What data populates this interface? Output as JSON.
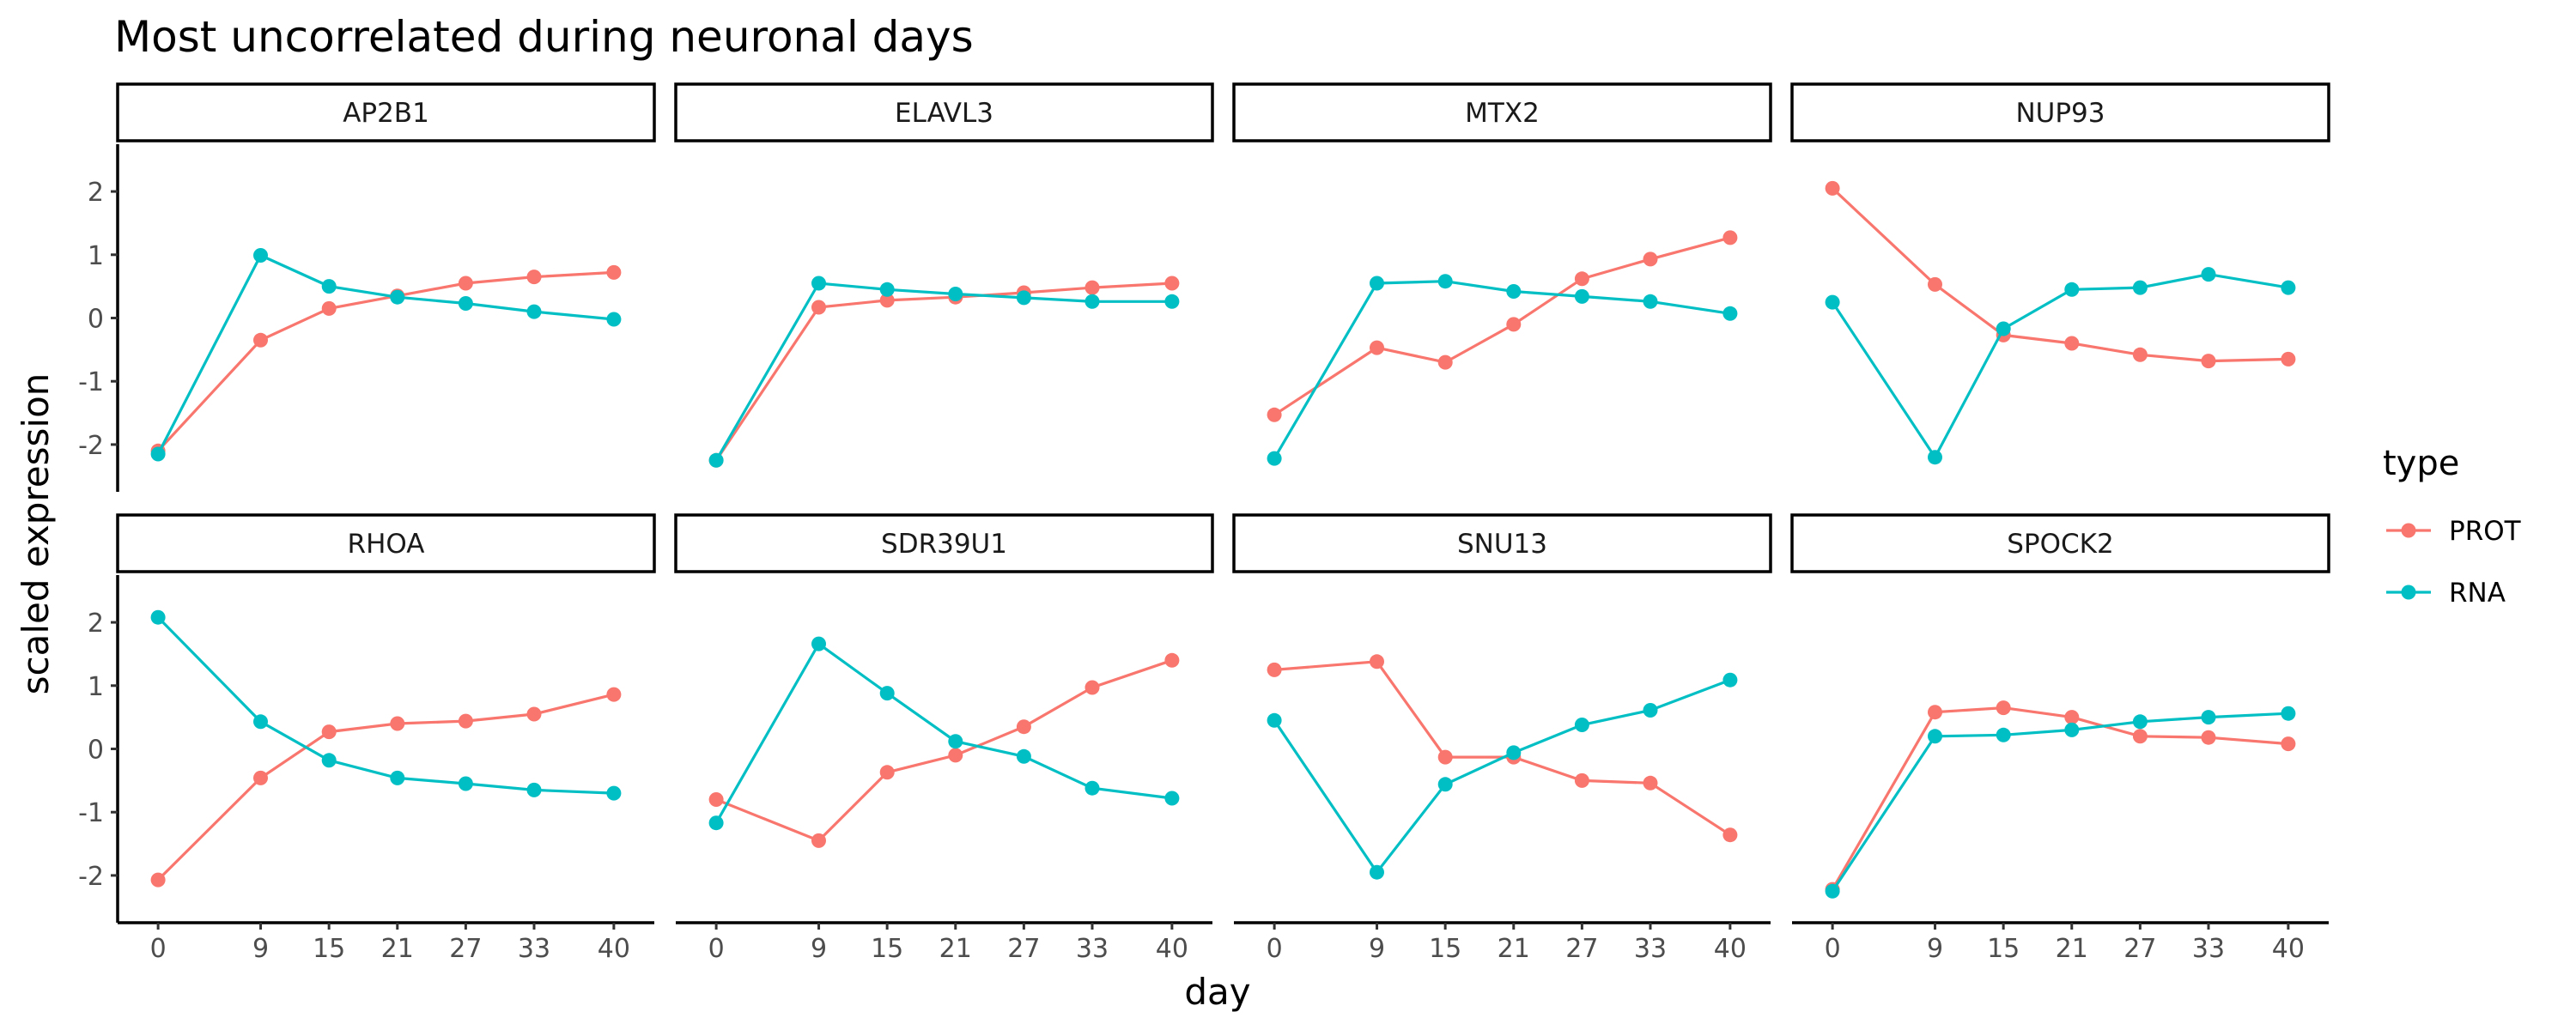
{
  "chart_data": {
    "type": "line",
    "title": "Most uncorrelated during neuronal days",
    "xlabel": "day",
    "ylabel": "scaled expression",
    "x": [
      0,
      9,
      15,
      21,
      27,
      33,
      40
    ],
    "x_tick_labels": [
      "0",
      "9",
      "15",
      "21",
      "27",
      "33",
      "40"
    ],
    "ylim": [
      -2.5,
      2.5
    ],
    "y_ticks": [
      -2,
      -1,
      0,
      1,
      2
    ],
    "y_tick_labels": [
      "-2",
      "-1",
      "0",
      "1",
      "2"
    ],
    "legend": {
      "title": "type",
      "position": "right",
      "entries": [
        {
          "label": "PROT",
          "color": "#F8766D"
        },
        {
          "label": "RNA",
          "color": "#00BFC4"
        }
      ]
    },
    "grid": false,
    "facets": [
      {
        "name": "AP2B1",
        "series": [
          {
            "name": "PROT",
            "values": [
              -2.1,
              -0.35,
              0.15,
              0.35,
              0.55,
              0.65,
              0.72
            ]
          },
          {
            "name": "RNA",
            "values": [
              -2.15,
              0.99,
              0.5,
              0.33,
              0.23,
              0.1,
              -0.02
            ]
          }
        ]
      },
      {
        "name": "ELAVL3",
        "series": [
          {
            "name": "PROT",
            "values": [
              -2.25,
              0.17,
              0.28,
              0.33,
              0.4,
              0.48,
              0.55
            ]
          },
          {
            "name": "RNA",
            "values": [
              -2.25,
              0.55,
              0.45,
              0.38,
              0.32,
              0.26,
              0.26
            ]
          }
        ]
      },
      {
        "name": "MTX2",
        "series": [
          {
            "name": "PROT",
            "values": [
              -1.53,
              -0.47,
              -0.7,
              -0.1,
              0.62,
              0.93,
              1.27
            ]
          },
          {
            "name": "RNA",
            "values": [
              -2.22,
              0.55,
              0.58,
              0.42,
              0.34,
              0.26,
              0.07
            ]
          }
        ]
      },
      {
        "name": "NUP93",
        "series": [
          {
            "name": "PROT",
            "values": [
              2.05,
              0.53,
              -0.27,
              -0.4,
              -0.58,
              -0.68,
              -0.65
            ]
          },
          {
            "name": "RNA",
            "values": [
              0.25,
              -2.2,
              -0.17,
              0.45,
              0.48,
              0.69,
              0.48
            ]
          }
        ]
      },
      {
        "name": "RHOA",
        "series": [
          {
            "name": "PROT",
            "values": [
              -2.07,
              -0.46,
              0.27,
              0.4,
              0.44,
              0.55,
              0.86
            ]
          },
          {
            "name": "RNA",
            "values": [
              2.08,
              0.43,
              -0.18,
              -0.46,
              -0.55,
              -0.65,
              -0.7
            ]
          }
        ]
      },
      {
        "name": "SDR39U1",
        "series": [
          {
            "name": "PROT",
            "values": [
              -0.8,
              -1.45,
              -0.37,
              -0.1,
              0.35,
              0.97,
              1.4
            ]
          },
          {
            "name": "RNA",
            "values": [
              -1.17,
              1.66,
              0.88,
              0.12,
              -0.12,
              -0.62,
              -0.78
            ]
          }
        ]
      },
      {
        "name": "SNU13",
        "series": [
          {
            "name": "PROT",
            "values": [
              1.25,
              1.38,
              -0.13,
              -0.13,
              -0.5,
              -0.54,
              -1.36
            ]
          },
          {
            "name": "RNA",
            "values": [
              0.45,
              -1.95,
              -0.56,
              -0.06,
              0.38,
              0.61,
              1.09
            ]
          }
        ]
      },
      {
        "name": "SPOCK2",
        "series": [
          {
            "name": "PROT",
            "values": [
              -2.22,
              0.58,
              0.65,
              0.5,
              0.2,
              0.18,
              0.08
            ]
          },
          {
            "name": "RNA",
            "values": [
              -2.25,
              0.2,
              0.22,
              0.3,
              0.43,
              0.5,
              0.56
            ]
          }
        ]
      }
    ]
  }
}
